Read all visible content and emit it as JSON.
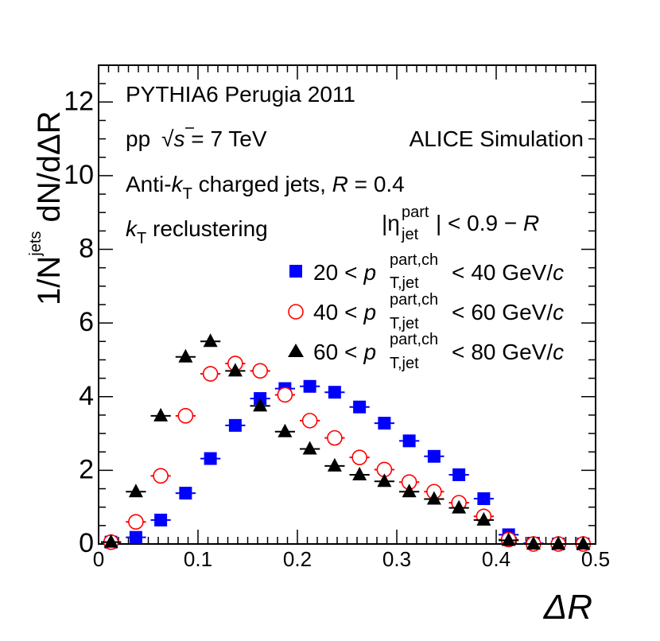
{
  "chart_data": {
    "type": "scatter",
    "title": "",
    "xlabel": "ΔR",
    "ylabel": {
      "prefix": "1/N",
      "sup": "jets",
      "suffix": " dN/dΔR"
    },
    "xlim": [
      0,
      0.5
    ],
    "ylim": [
      0,
      13
    ],
    "x_ticks": [
      "0",
      "0.1",
      "0.2",
      "0.3",
      "0.4",
      "0.5"
    ],
    "y_ticks": [
      "0",
      "2",
      "4",
      "6",
      "8",
      "10",
      "12"
    ],
    "bin_edges": [
      0,
      0.025,
      0.05,
      0.075,
      0.1,
      0.125,
      0.15,
      0.175,
      0.2,
      0.225,
      0.25,
      0.275,
      0.3,
      0.325,
      0.35,
      0.375,
      0.4,
      0.425,
      0.45,
      0.475,
      0.5
    ],
    "x": [
      0.0125,
      0.0375,
      0.0625,
      0.0875,
      0.1125,
      0.1375,
      0.1625,
      0.1875,
      0.2125,
      0.2375,
      0.2625,
      0.2875,
      0.3125,
      0.3375,
      0.3625,
      0.3875,
      0.4125,
      0.4375,
      0.4625,
      0.4875
    ],
    "series": [
      {
        "name": "20 < p_T,jet^part,ch < 40 GeV/c",
        "marker": "square",
        "color": "#0000ff",
        "values": [
          0.05,
          0.18,
          0.65,
          1.38,
          2.32,
          3.22,
          3.95,
          4.22,
          4.28,
          4.12,
          3.72,
          3.28,
          2.8,
          2.38,
          1.88,
          1.23,
          0.25,
          0.02,
          0.0,
          0.0
        ]
      },
      {
        "name": "40 < p_T,jet^part,ch < 60 GeV/c",
        "marker": "open-circle",
        "color": "#ff0000",
        "values": [
          0.05,
          0.6,
          1.85,
          3.48,
          4.62,
          4.9,
          4.7,
          4.05,
          3.35,
          2.88,
          2.35,
          2.02,
          1.68,
          1.42,
          1.12,
          0.75,
          0.12,
          0.0,
          0.0,
          0.0
        ]
      },
      {
        "name": "60 < p_T,jet^part,ch < 80 GeV/c",
        "marker": "filled-triangle",
        "color": "#000000",
        "values": [
          0.05,
          1.42,
          3.48,
          5.08,
          5.5,
          4.7,
          3.75,
          3.05,
          2.58,
          2.12,
          1.88,
          1.7,
          1.42,
          1.22,
          0.98,
          0.65,
          0.1,
          0.0,
          0.0,
          0.0
        ]
      }
    ],
    "legend": {
      "placement": "right-middle",
      "entries": [
        {
          "lo": "20",
          "hi": "40",
          "unit": " GeV/",
          "unit_italic": "c"
        },
        {
          "lo": "40",
          "hi": "60",
          "unit": " GeV/",
          "unit_italic": "c"
        },
        {
          "lo": "60",
          "hi": "80",
          "unit": " GeV/",
          "unit_italic": "c"
        }
      ],
      "p_symbol": "p",
      "p_sub": "T,jet",
      "p_sup": "part,ch",
      "lt": "<"
    },
    "annotations": {
      "generator": "PYTHIA6 Perugia 2011",
      "system": "pp",
      "sqrt_symbol": "√",
      "energy_var": "s",
      "energy": " = 7 TeV",
      "simulation": "ALICE Simulation",
      "algo_prefix": "Anti-",
      "algo_k": "k",
      "algo_ksub": "T",
      "algo_suffix": " charged jets, ",
      "algo_R": "R",
      "algo_Rval": " = 0.4",
      "recl_k": "k",
      "recl_ksub": "T",
      "recl_suffix": " reclustering",
      "eta_bar": "|η",
      "eta_sup": "part",
      "eta_sub": "jet",
      "eta_suffix": "| < 0.9 − ",
      "eta_R": "R"
    }
  }
}
